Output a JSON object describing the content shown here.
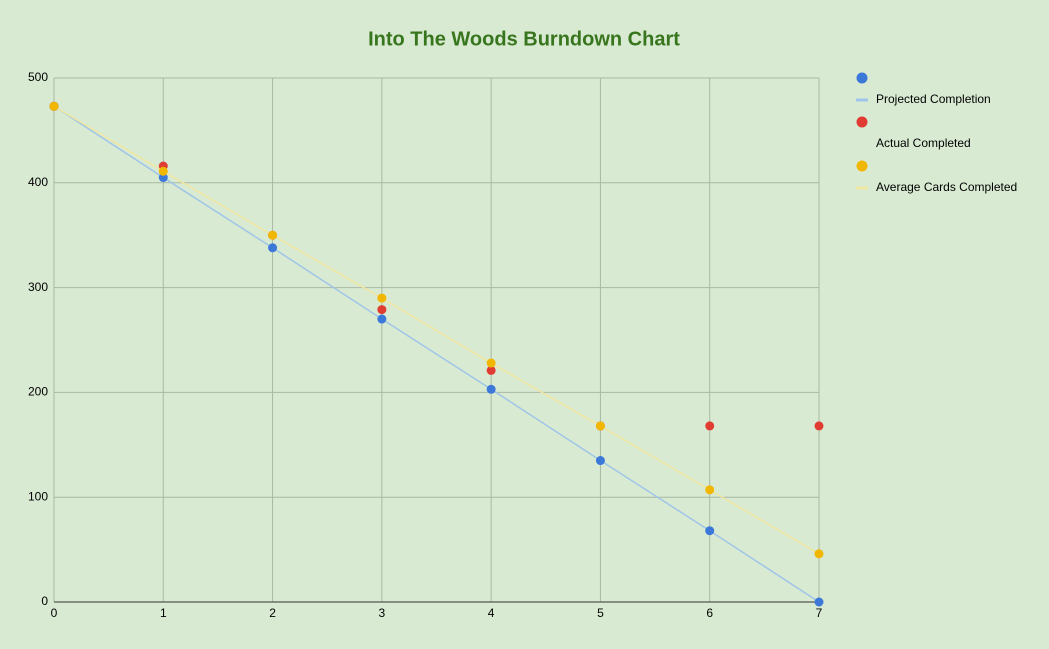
{
  "chart_data": {
    "type": "scatter",
    "title": "Into The Woods Burndown Chart",
    "x": [
      0,
      1,
      2,
      3,
      4,
      5,
      6,
      7
    ],
    "series": [
      {
        "name": "Projected Completion",
        "color": "#3c78d8",
        "line_color": "#9fc5e8",
        "values": [
          473,
          405,
          338,
          270,
          203,
          135,
          68,
          0
        ]
      },
      {
        "name": "Actual Completed",
        "color": "#e03c31",
        "values": [
          473,
          416,
          350,
          279,
          221,
          168,
          168,
          168
        ]
      },
      {
        "name": "Average Cards Completed",
        "color": "#f1b700",
        "line_color": "#efe6a0",
        "values": [
          473,
          411,
          350,
          290,
          228,
          168,
          107,
          46
        ]
      }
    ],
    "xlim": [
      0,
      7
    ],
    "xticks": [
      0,
      1,
      2,
      3,
      4,
      5,
      6,
      7
    ],
    "ylim": [
      0,
      500
    ],
    "yticks": [
      0,
      100,
      200,
      300,
      400,
      500
    ],
    "grid": true,
    "legend": "right"
  }
}
